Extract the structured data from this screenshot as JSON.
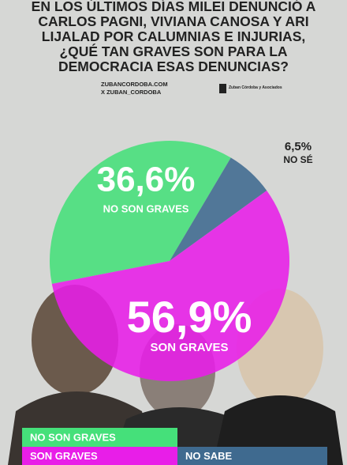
{
  "chart_data": {
    "type": "pie",
    "title": "EN LOS ÚLTIMOS DÍAS MILEI DENUNCIÓ A CARLOS PAGNI, VIVIANA CANOSA Y ARI LIJALAD POR CALUMNIAS E INJURIAS, ¿QUÉ TAN GRAVES SON PARA LA DEMOCRACIA ESAS DENUNCIAS?",
    "source_web": "ZUBANCORDOBA.COM",
    "source_social": "X ZUBAN_CORDOBA",
    "brand": "Zuban Córdoba y Asociados",
    "categories": [
      "NO SON GRAVES",
      "NO SÉ",
      "SON GRAVES"
    ],
    "values": [
      36.6,
      6.5,
      56.9
    ],
    "value_labels": [
      "36,6%",
      "6,5%",
      "56,9%"
    ],
    "colors": [
      "#45e07a",
      "#3f6a8f",
      "#e81ee8"
    ],
    "legend": [
      {
        "name": "NO SON GRAVES",
        "color": "#45e07a"
      },
      {
        "name": "SON GRAVES",
        "color": "#e81ee8"
      },
      {
        "name": "NO SABE",
        "color": "#3f6a8f"
      }
    ]
  }
}
